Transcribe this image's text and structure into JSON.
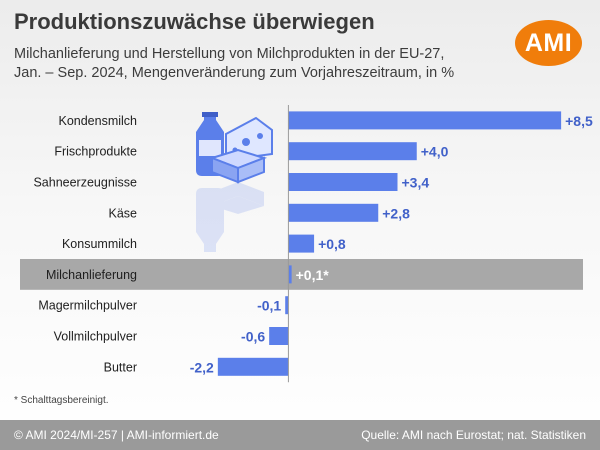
{
  "header": {
    "title": "Produktionszuwächse überwiegen",
    "subtitle_line1": "Milchanlieferung und Herstellung von Milchprodukten in der EU-27,",
    "subtitle_line2": "Jan. – Sep. 2024, Mengenveränderung zum Vorjahreszeitraum, in %",
    "logo_text": "AMI"
  },
  "chart_data": {
    "type": "bar",
    "orientation": "horizontal",
    "categories": [
      "Kondensmilch",
      "Frischprodukte",
      "Sahneerzeugnisse",
      "Käse",
      "Konsummilch",
      "Milchanlieferung",
      "Magermilchpulver",
      "Vollmilchpulver",
      "Butter"
    ],
    "values": [
      8.5,
      4.0,
      3.4,
      2.8,
      0.8,
      0.1,
      -0.1,
      -0.6,
      -2.2
    ],
    "value_labels": [
      "+8,5",
      "+4,0",
      "+3,4",
      "+2,8",
      "+0,8",
      "+0,1*",
      "-0,1",
      "-0,6",
      "-2,2"
    ],
    "highlighted_category": "Milchanlieferung",
    "xlim": [
      -2.6,
      9.4
    ],
    "colors": {
      "bar": "#5b7fea",
      "label": "#4161c9",
      "highlight_row": "#a8a8a8",
      "axis": "#9a9a9a"
    }
  },
  "footnote": "* Schalttagsbereinigt.",
  "footer": {
    "left": "© AMI 2024/MI-257 | AMI-informiert.de",
    "right": "Quelle: AMI nach Eurostat; nat. Statistiken"
  },
  "illustration": {
    "icon": "dairy-products-icon"
  }
}
